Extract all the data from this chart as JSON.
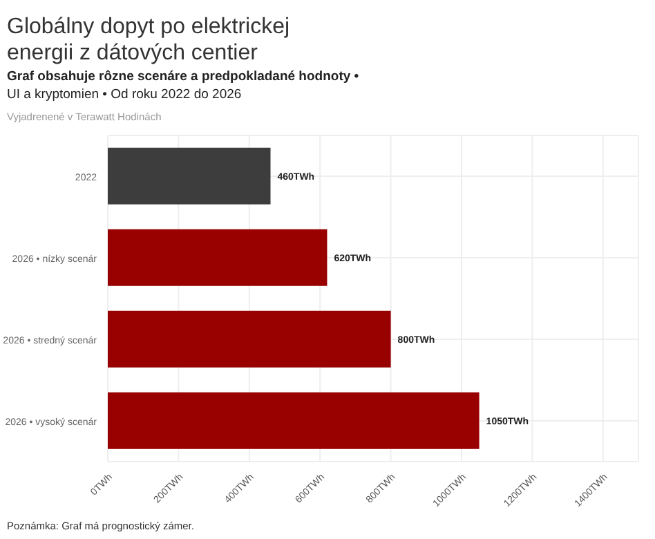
{
  "chart_data": {
    "type": "bar",
    "orientation": "horizontal",
    "title": "Globálny dopyt po elektrickej energii z dátových centier",
    "subtitle": "Graf obsahuje rôzne scenáre a predpokladané hodnoty •",
    "annotations": [
      "UI a kryptomien • Od roku 2022 do 2026",
      "Vyjadrenené v Terawatt Hodinách",
      "Poznámka: Graf má prognostický zámer."
    ],
    "categories": [
      "2022",
      "2026 • nízky scenár",
      "2026 • stredný scenár",
      "2026 • vysoký scenár"
    ],
    "values": [
      460,
      620,
      800,
      1050
    ],
    "colors": [
      "#3d3d3d",
      "#990000",
      "#990000",
      "#990000"
    ],
    "value_labels": [
      "460TWh",
      "620TWh",
      "800TWh",
      "1050TWh"
    ],
    "xlim": [
      0,
      1500
    ],
    "xticks": [
      {
        "value": 0,
        "label": "0TWh"
      },
      {
        "value": 200,
        "label": "200TWh"
      },
      {
        "value": 400,
        "label": "400TWh"
      },
      {
        "value": 600,
        "label": "600TWh"
      },
      {
        "value": 800,
        "label": "800TWh"
      },
      {
        "value": 1000,
        "label": "1000TWh"
      },
      {
        "value": 1200,
        "label": "1200TWh"
      },
      {
        "value": 1400,
        "label": "1400TWh"
      }
    ],
    "grid": true
  }
}
